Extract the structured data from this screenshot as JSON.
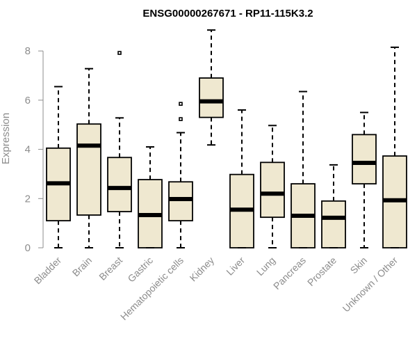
{
  "chart_data": {
    "type": "box",
    "title": "ENSG00000267671 - RP11-115K3.2",
    "ylabel": "Expression",
    "xlabel": "",
    "ylim": [
      0,
      8.9
    ],
    "yticks": [
      0,
      2,
      4,
      6,
      8
    ],
    "grid": false,
    "box_fill": "#efe8d0",
    "box_stroke": "#000000",
    "tick_color": "#8c8c8c",
    "categories": [
      "Bladder",
      "Brain",
      "Breast",
      "Gastric",
      "Hematopoietic cells",
      "Kidney",
      "Liver",
      "Lung",
      "Pancreas",
      "Prostate",
      "Skin",
      "Unknown / Other"
    ],
    "series": [
      {
        "category": "Bladder",
        "whisker_low": 0,
        "q1": 1.1,
        "median": 2.62,
        "q3": 4.05,
        "whisker_high": 6.55,
        "outliers": []
      },
      {
        "category": "Brain",
        "whisker_low": 0,
        "q1": 1.33,
        "median": 4.15,
        "q3": 5.03,
        "whisker_high": 7.28,
        "outliers": []
      },
      {
        "category": "Breast",
        "whisker_low": 0,
        "q1": 1.47,
        "median": 2.43,
        "q3": 3.67,
        "whisker_high": 5.28,
        "outliers": [
          7.92
        ]
      },
      {
        "category": "Gastric",
        "whisker_low": 0,
        "q1": 0,
        "median": 1.33,
        "q3": 2.77,
        "whisker_high": 4.1,
        "outliers": []
      },
      {
        "category": "Hematopoietic cells",
        "whisker_low": 0,
        "q1": 1.1,
        "median": 1.98,
        "q3": 2.68,
        "whisker_high": 4.68,
        "outliers": [
          5.23,
          5.85
        ]
      },
      {
        "category": "Kidney",
        "whisker_low": 4.18,
        "q1": 5.3,
        "median": 5.95,
        "q3": 6.9,
        "whisker_high": 8.85,
        "outliers": []
      },
      {
        "category": "Liver",
        "whisker_low": 0,
        "q1": 0,
        "median": 1.55,
        "q3": 2.98,
        "whisker_high": 5.6,
        "outliers": []
      },
      {
        "category": "Lung",
        "whisker_low": 0,
        "q1": 1.24,
        "median": 2.2,
        "q3": 3.47,
        "whisker_high": 4.97,
        "outliers": []
      },
      {
        "category": "Pancreas",
        "whisker_low": 0,
        "q1": 0,
        "median": 1.3,
        "q3": 2.6,
        "whisker_high": 6.35,
        "outliers": []
      },
      {
        "category": "Prostate",
        "whisker_low": 0,
        "q1": 0,
        "median": 1.22,
        "q3": 1.9,
        "whisker_high": 3.37,
        "outliers": []
      },
      {
        "category": "Skin",
        "whisker_low": 0,
        "q1": 2.6,
        "median": 3.45,
        "q3": 4.6,
        "whisker_high": 5.5,
        "outliers": []
      },
      {
        "category": "Unknown / Other",
        "whisker_low": 0,
        "q1": 0,
        "median": 1.93,
        "q3": 3.73,
        "whisker_high": 8.15,
        "outliers": []
      }
    ]
  }
}
